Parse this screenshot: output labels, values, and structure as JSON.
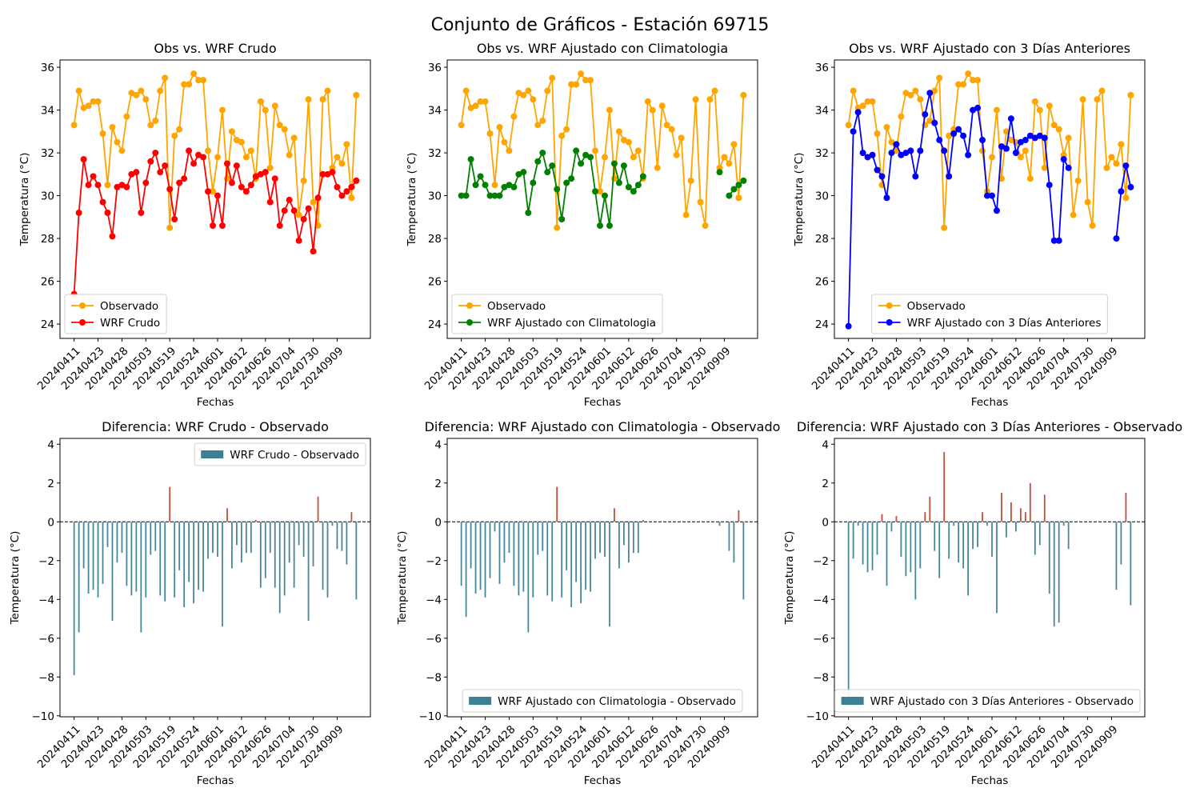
{
  "title": "Conjunto de Gráficos - Estación 69715",
  "chart_data": [
    {
      "type": "line",
      "title": "Obs vs. WRF Crudo",
      "xlabel": "Fechas",
      "ylabel": "Temperatura (°C)",
      "categories": [
        "20240411",
        null,
        null,
        null,
        null,
        "20240423",
        null,
        null,
        null,
        null,
        "20240428",
        null,
        null,
        null,
        null,
        "20240503",
        null,
        null,
        null,
        null,
        "20240519",
        null,
        null,
        null,
        null,
        "20240524",
        null,
        null,
        null,
        null,
        "20240601",
        null,
        null,
        null,
        null,
        "20240612",
        null,
        null,
        null,
        null,
        "20240626",
        null,
        null,
        null,
        null,
        "20240704",
        null,
        null,
        null,
        null,
        "20240730",
        null,
        null,
        null,
        null,
        "20240909",
        null,
        null,
        null,
        null
      ],
      "series": [
        {
          "name": "Observado",
          "color": "orange",
          "values": [
            33.3,
            34.9,
            34.1,
            34.2,
            34.4,
            34.4,
            32.9,
            30.5,
            33.2,
            32.5,
            32.1,
            33.7,
            34.8,
            34.7,
            34.9,
            34.5,
            33.3,
            33.5,
            34.9,
            35.5,
            28.5,
            32.8,
            33.1,
            35.2,
            35.2,
            35.7,
            35.4,
            35.4,
            32.1,
            30.2,
            31.8,
            34.0,
            30.8,
            33.0,
            32.6,
            32.5,
            31.8,
            32.1,
            30.8,
            34.4,
            34.0,
            31.3,
            34.2,
            33.3,
            33.1,
            31.9,
            32.7,
            29.1,
            30.7,
            34.5,
            29.7,
            28.6,
            34.5,
            34.9,
            31.3,
            31.8,
            31.5,
            32.4,
            29.9,
            34.7
          ]
        },
        {
          "name": "WRF Crudo",
          "color": "red",
          "values": [
            25.4,
            29.2,
            31.7,
            30.5,
            30.9,
            30.5,
            29.7,
            29.2,
            28.1,
            30.4,
            30.5,
            30.4,
            31.0,
            31.1,
            29.2,
            30.6,
            31.6,
            32.0,
            31.1,
            31.4,
            30.3,
            28.9,
            30.6,
            30.8,
            32.1,
            31.5,
            31.9,
            31.8,
            30.2,
            28.6,
            30.0,
            28.6,
            31.5,
            30.6,
            31.4,
            30.4,
            30.2,
            30.5,
            30.9,
            31.0,
            31.1,
            29.7,
            30.8,
            28.6,
            29.3,
            29.8,
            29.3,
            27.9,
            28.9,
            29.4,
            27.4,
            29.9,
            31.0,
            31.0,
            31.1,
            30.4,
            30.0,
            30.2,
            30.4,
            30.7
          ]
        }
      ],
      "ylim": [
        23.33,
        36.34
      ],
      "yticks": [
        24,
        26,
        28,
        30,
        32,
        34,
        36
      ],
      "legend": "lower left"
    },
    {
      "type": "line",
      "title": "Obs vs. WRF Ajustado con Climatologia",
      "xlabel": "Fechas",
      "ylabel": "Temperatura (°C)",
      "categories": [
        "20240411",
        null,
        null,
        null,
        null,
        "20240423",
        null,
        null,
        null,
        null,
        "20240428",
        null,
        null,
        null,
        null,
        "20240503",
        null,
        null,
        null,
        null,
        "20240519",
        null,
        null,
        null,
        null,
        "20240524",
        null,
        null,
        null,
        null,
        "20240601",
        null,
        null,
        null,
        null,
        "20240612",
        null,
        null,
        null,
        null,
        "20240626",
        null,
        null,
        null,
        null,
        "20240704",
        null,
        null,
        null,
        null,
        "20240730",
        null,
        null,
        null,
        null,
        "20240909",
        null,
        null,
        null,
        null
      ],
      "series": [
        {
          "name": "Observado",
          "color": "orange",
          "values": [
            33.3,
            34.9,
            34.1,
            34.2,
            34.4,
            34.4,
            32.9,
            30.5,
            33.2,
            32.5,
            32.1,
            33.7,
            34.8,
            34.7,
            34.9,
            34.5,
            33.3,
            33.5,
            34.9,
            35.5,
            28.5,
            32.8,
            33.1,
            35.2,
            35.2,
            35.7,
            35.4,
            35.4,
            32.1,
            30.2,
            31.8,
            34.0,
            30.8,
            33.0,
            32.6,
            32.5,
            31.8,
            32.1,
            30.8,
            34.4,
            34.0,
            31.3,
            34.2,
            33.3,
            33.1,
            31.9,
            32.7,
            29.1,
            30.7,
            34.5,
            29.7,
            28.6,
            34.5,
            34.9,
            31.3,
            31.8,
            31.5,
            32.4,
            29.9,
            34.7
          ]
        },
        {
          "name": "WRF Ajustado con Climatologia",
          "color": "green",
          "values": [
            30.0,
            30.0,
            31.7,
            30.5,
            30.9,
            30.5,
            30.0,
            30.0,
            30.0,
            30.4,
            30.5,
            30.4,
            31.0,
            31.1,
            29.2,
            30.6,
            31.6,
            32.0,
            31.1,
            31.4,
            30.3,
            28.9,
            30.6,
            30.8,
            32.1,
            31.5,
            31.9,
            31.8,
            30.2,
            28.6,
            30.0,
            28.6,
            31.5,
            30.6,
            31.4,
            30.4,
            30.2,
            30.5,
            30.9,
            null,
            null,
            null,
            null,
            null,
            null,
            null,
            null,
            null,
            null,
            null,
            null,
            null,
            null,
            null,
            31.1,
            null,
            30.0,
            30.3,
            30.5,
            30.7
          ]
        }
      ],
      "ylim": [
        23.33,
        36.34
      ],
      "yticks": [
        24,
        26,
        28,
        30,
        32,
        34,
        36
      ],
      "legend": "lower left"
    },
    {
      "type": "line",
      "title": "Obs vs. WRF Ajustado con 3 Días Anteriores",
      "xlabel": "Fechas",
      "ylabel": "Temperatura (°C)",
      "categories": [
        "20240411",
        null,
        null,
        null,
        null,
        "20240423",
        null,
        null,
        null,
        null,
        "20240428",
        null,
        null,
        null,
        null,
        "20240503",
        null,
        null,
        null,
        null,
        "20240519",
        null,
        null,
        null,
        null,
        "20240524",
        null,
        null,
        null,
        null,
        "20240601",
        null,
        null,
        null,
        null,
        "20240612",
        null,
        null,
        null,
        null,
        "20240626",
        null,
        null,
        null,
        null,
        "20240704",
        null,
        null,
        null,
        null,
        "20240730",
        null,
        null,
        null,
        null,
        "20240909",
        null,
        null,
        null,
        null
      ],
      "series": [
        {
          "name": "Observado",
          "color": "orange",
          "values": [
            33.3,
            34.9,
            34.1,
            34.2,
            34.4,
            34.4,
            32.9,
            30.5,
            33.2,
            32.5,
            32.1,
            33.7,
            34.8,
            34.7,
            34.9,
            34.5,
            33.3,
            33.5,
            34.9,
            35.5,
            28.5,
            32.8,
            33.1,
            35.2,
            35.2,
            35.7,
            35.4,
            35.4,
            32.1,
            30.2,
            31.8,
            34.0,
            30.8,
            33.0,
            32.6,
            32.5,
            31.8,
            32.1,
            30.8,
            34.4,
            34.0,
            31.3,
            34.2,
            33.3,
            33.1,
            31.9,
            32.7,
            29.1,
            30.7,
            34.5,
            29.7,
            28.6,
            34.5,
            34.9,
            31.3,
            31.8,
            31.5,
            32.4,
            29.9,
            34.7
          ]
        },
        {
          "name": "WRF Ajustado con 3 Días Anteriores",
          "color": "blue",
          "values": [
            23.9,
            33.0,
            33.9,
            32.0,
            31.8,
            31.9,
            31.2,
            30.9,
            29.9,
            32.0,
            32.4,
            31.9,
            32.0,
            32.1,
            30.9,
            32.1,
            33.8,
            34.8,
            33.4,
            32.6,
            32.1,
            30.9,
            32.9,
            33.1,
            32.8,
            31.9,
            34.0,
            34.1,
            32.6,
            30.0,
            30.0,
            29.3,
            32.3,
            32.2,
            33.6,
            32.0,
            32.5,
            32.6,
            32.8,
            32.7,
            32.8,
            32.7,
            30.5,
            27.9,
            27.9,
            31.7,
            31.3,
            null,
            null,
            null,
            null,
            null,
            null,
            null,
            null,
            null,
            28.0,
            30.2,
            31.4,
            30.4
          ]
        }
      ],
      "ylim": [
        23.33,
        36.34
      ],
      "yticks": [
        24,
        26,
        28,
        30,
        32,
        34,
        36
      ],
      "legend": "lower center"
    },
    {
      "type": "bar",
      "title": "Diferencia: WRF Crudo - Observado",
      "xlabel": "Fechas",
      "ylabel": "Temperatura (°C)",
      "categories": [
        "20240411",
        null,
        null,
        null,
        null,
        "20240423",
        null,
        null,
        null,
        null,
        "20240428",
        null,
        null,
        null,
        null,
        "20240503",
        null,
        null,
        null,
        null,
        "20240519",
        null,
        null,
        null,
        null,
        "20240524",
        null,
        null,
        null,
        null,
        "20240601",
        null,
        null,
        null,
        null,
        "20240612",
        null,
        null,
        null,
        null,
        "20240626",
        null,
        null,
        null,
        null,
        "20240704",
        null,
        null,
        null,
        null,
        "20240730",
        null,
        null,
        null,
        null,
        "20240909",
        null,
        null,
        null,
        null
      ],
      "series": [
        {
          "name": "WRF Crudo - Observado",
          "color": "#3d7f93",
          "positive_color": "#c0442f",
          "values": [
            -7.9,
            -5.7,
            -2.4,
            -3.7,
            -3.5,
            -3.9,
            -3.2,
            -1.3,
            -5.1,
            -2.1,
            -1.6,
            -3.3,
            -3.8,
            -3.6,
            -5.7,
            -3.9,
            -1.7,
            -1.5,
            -3.8,
            -4.1,
            1.8,
            -3.9,
            -2.5,
            -4.4,
            -3.1,
            -4.2,
            -3.5,
            -3.6,
            -1.9,
            -1.6,
            -1.8,
            -5.4,
            0.7,
            -2.4,
            -1.2,
            -2.1,
            -1.6,
            -1.6,
            0.1,
            -3.4,
            -2.9,
            -1.6,
            -3.4,
            -4.7,
            -3.8,
            -2.1,
            -3.4,
            -1.2,
            -1.8,
            -5.1,
            -2.3,
            1.3,
            -3.5,
            -3.9,
            -0.2,
            -1.4,
            -1.5,
            -2.2,
            0.5,
            -4.0
          ]
        }
      ],
      "ylim": [
        -10.05,
        4.3
      ],
      "yticks": [
        {
          "value": -10,
          "label": "−10"
        },
        {
          "value": -8,
          "label": "−8"
        },
        {
          "value": -6,
          "label": "−6"
        },
        {
          "value": -4,
          "label": "−4"
        },
        {
          "value": -2,
          "label": "−2"
        },
        0,
        2,
        4
      ],
      "zero_line": true,
      "legend": "upper right"
    },
    {
      "type": "bar",
      "title": "Diferencia: WRF Ajustado con Climatologia - Observado",
      "xlabel": "Fechas",
      "ylabel": "Temperatura (°C)",
      "categories": [
        "20240411",
        null,
        null,
        null,
        null,
        "20240423",
        null,
        null,
        null,
        null,
        "20240428",
        null,
        null,
        null,
        null,
        "20240503",
        null,
        null,
        null,
        null,
        "20240519",
        null,
        null,
        null,
        null,
        "20240524",
        null,
        null,
        null,
        null,
        "20240601",
        null,
        null,
        null,
        null,
        "20240612",
        null,
        null,
        null,
        null,
        "20240626",
        null,
        null,
        null,
        null,
        "20240704",
        null,
        null,
        null,
        null,
        "20240730",
        null,
        null,
        null,
        null,
        "20240909",
        null,
        null,
        null,
        null
      ],
      "series": [
        {
          "name": "WRF Ajustado con Climatologia - Observado",
          "color": "#3d7f93",
          "positive_color": "#c0442f",
          "values": [
            -3.3,
            -4.9,
            -2.4,
            -3.7,
            -3.5,
            -3.9,
            -2.9,
            -0.5,
            -3.2,
            -2.1,
            -1.6,
            -3.3,
            -3.8,
            -3.6,
            -5.7,
            -3.9,
            -1.7,
            -1.5,
            -3.8,
            -4.1,
            1.8,
            -3.9,
            -2.5,
            -4.4,
            -3.1,
            -4.2,
            -3.5,
            -3.6,
            -1.9,
            -1.6,
            -1.8,
            -5.4,
            0.7,
            -2.4,
            -1.2,
            -2.1,
            -1.6,
            -1.6,
            0.1,
            null,
            null,
            null,
            null,
            null,
            null,
            null,
            null,
            null,
            null,
            null,
            null,
            null,
            null,
            null,
            -0.2,
            null,
            -1.5,
            -2.1,
            0.6,
            -4.0
          ]
        }
      ],
      "ylim": [
        -10.05,
        4.3
      ],
      "yticks": [
        {
          "value": -10,
          "label": "−10"
        },
        {
          "value": -8,
          "label": "−8"
        },
        {
          "value": -6,
          "label": "−6"
        },
        {
          "value": -4,
          "label": "−4"
        },
        {
          "value": -2,
          "label": "−2"
        },
        0,
        2,
        4
      ],
      "zero_line": true,
      "legend": "lower center"
    },
    {
      "type": "bar",
      "title": "Diferencia: WRF Ajustado con 3 Días Anteriores - Observado",
      "xlabel": "Fechas",
      "ylabel": "Temperatura (°C)",
      "categories": [
        "20240411",
        null,
        null,
        null,
        null,
        "20240423",
        null,
        null,
        null,
        null,
        "20240428",
        null,
        null,
        null,
        null,
        "20240503",
        null,
        null,
        null,
        null,
        "20240519",
        null,
        null,
        null,
        null,
        "20240524",
        null,
        null,
        null,
        null,
        "20240601",
        null,
        null,
        null,
        null,
        "20240612",
        null,
        null,
        null,
        null,
        "20240626",
        null,
        null,
        null,
        null,
        "20240704",
        null,
        null,
        null,
        null,
        "20240730",
        null,
        null,
        null,
        null,
        "20240909",
        null,
        null,
        null,
        null
      ],
      "series": [
        {
          "name": "WRF Ajustado con 3 Días Anteriores - Observado",
          "color": "#3d7f93",
          "positive_color": "#c0442f",
          "values": [
            -9.4,
            -1.9,
            -0.2,
            -2.2,
            -2.6,
            -2.5,
            -1.7,
            0.4,
            -3.3,
            -0.5,
            0.3,
            -1.8,
            -2.8,
            -2.6,
            -4.0,
            -2.4,
            0.5,
            1.3,
            -1.5,
            -2.9,
            3.6,
            -1.9,
            -0.2,
            -2.1,
            -2.4,
            -3.8,
            -1.4,
            -1.3,
            0.5,
            -0.2,
            -1.8,
            -4.7,
            1.5,
            -0.8,
            1.0,
            -0.5,
            0.7,
            0.5,
            2.0,
            -1.7,
            -1.2,
            1.4,
            -3.7,
            -5.4,
            -5.2,
            -0.2,
            -1.4,
            null,
            null,
            null,
            null,
            null,
            null,
            null,
            null,
            null,
            -3.5,
            -2.2,
            1.5,
            -4.3
          ]
        }
      ],
      "ylim": [
        -10.05,
        4.3
      ],
      "yticks": [
        {
          "value": -10,
          "label": "−10"
        },
        {
          "value": -8,
          "label": "−8"
        },
        {
          "value": -6,
          "label": "−6"
        },
        {
          "value": -4,
          "label": "−4"
        },
        {
          "value": -2,
          "label": "−2"
        },
        0,
        2,
        4
      ],
      "zero_line": true,
      "legend": "lower right"
    }
  ]
}
